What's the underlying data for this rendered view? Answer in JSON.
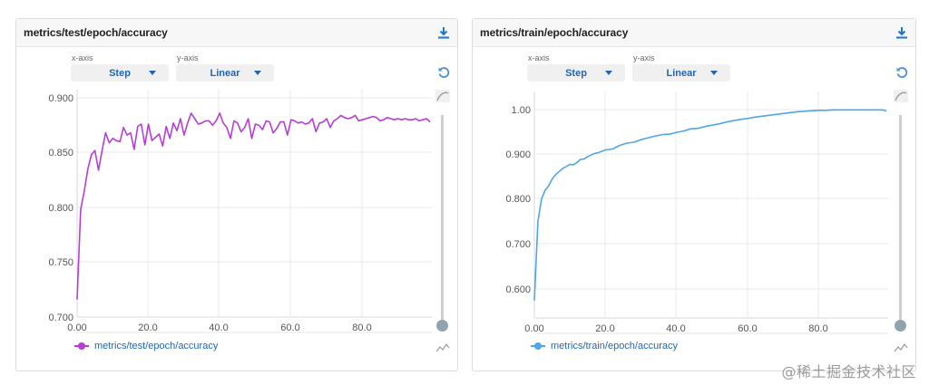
{
  "panels": [
    {
      "title": "metrics/test/epoch/accuracy",
      "x_axis_label": "x-axis",
      "y_axis_label": "y-axis",
      "x_axis_value": "Step",
      "y_axis_value": "Linear",
      "legend": "metrics/test/epoch/accuracy",
      "color": "#b73dd6"
    },
    {
      "title": "metrics/train/epoch/accuracy",
      "x_axis_label": "x-axis",
      "y_axis_label": "y-axis",
      "x_axis_value": "Step",
      "y_axis_value": "Linear",
      "legend": "metrics/train/epoch/accuracy",
      "color": "#4ea6e8"
    }
  ],
  "watermark": "@稀土掘金技术社区",
  "chart_data": [
    {
      "type": "line",
      "title": "metrics/test/epoch/accuracy",
      "xlabel": "Step",
      "ylabel": "",
      "xlim": [
        0,
        99
      ],
      "ylim": [
        0.7,
        0.9
      ],
      "x_ticks": [
        "0.00",
        "20.0",
        "40.0",
        "60.0",
        "80.0"
      ],
      "y_ticks": [
        "0.700",
        "0.750",
        "0.800",
        "0.850",
        "0.900"
      ],
      "grid": true,
      "legend_position": "bottom",
      "series": [
        {
          "name": "metrics/test/epoch/accuracy",
          "color": "#b73dd6",
          "x": [
            0,
            1,
            2,
            3,
            4,
            5,
            6,
            7,
            8,
            9,
            10,
            11,
            12,
            13,
            14,
            15,
            16,
            17,
            18,
            19,
            20,
            21,
            22,
            23,
            24,
            25,
            26,
            27,
            28,
            29,
            30,
            31,
            32,
            33,
            34,
            35,
            36,
            37,
            38,
            39,
            40,
            41,
            42,
            43,
            44,
            45,
            46,
            47,
            48,
            49,
            50,
            51,
            52,
            53,
            54,
            55,
            56,
            57,
            58,
            59,
            60,
            61,
            62,
            63,
            64,
            65,
            66,
            67,
            68,
            69,
            70,
            71,
            72,
            73,
            74,
            75,
            76,
            77,
            78,
            79,
            80,
            81,
            82,
            83,
            84,
            85,
            86,
            87,
            88,
            89,
            90,
            91,
            92,
            93,
            94,
            95,
            96,
            97,
            98,
            99
          ],
          "values": [
            0.716,
            0.798,
            0.815,
            0.835,
            0.848,
            0.852,
            0.834,
            0.852,
            0.868,
            0.859,
            0.863,
            0.861,
            0.86,
            0.873,
            0.866,
            0.868,
            0.853,
            0.874,
            0.876,
            0.857,
            0.876,
            0.861,
            0.864,
            0.867,
            0.856,
            0.874,
            0.863,
            0.877,
            0.87,
            0.881,
            0.866,
            0.877,
            0.886,
            0.881,
            0.876,
            0.877,
            0.879,
            0.879,
            0.875,
            0.879,
            0.886,
            0.877,
            0.873,
            0.863,
            0.879,
            0.877,
            0.869,
            0.873,
            0.881,
            0.863,
            0.876,
            0.875,
            0.871,
            0.879,
            0.878,
            0.868,
            0.872,
            0.878,
            0.878,
            0.866,
            0.88,
            0.879,
            0.877,
            0.878,
            0.876,
            0.877,
            0.881,
            0.869,
            0.877,
            0.878,
            0.881,
            0.873,
            0.879,
            0.881,
            0.884,
            0.882,
            0.881,
            0.882,
            0.884,
            0.879,
            0.88,
            0.881,
            0.882,
            0.883,
            0.882,
            0.879,
            0.88,
            0.882,
            0.881,
            0.88,
            0.881,
            0.88,
            0.881,
            0.88,
            0.88,
            0.881,
            0.879,
            0.88,
            0.881,
            0.878
          ]
        }
      ]
    },
    {
      "type": "line",
      "title": "metrics/train/epoch/accuracy",
      "xlabel": "Step",
      "ylabel": "",
      "xlim": [
        0,
        99
      ],
      "ylim": [
        0.54,
        1.04
      ],
      "x_ticks": [
        "0.00",
        "20.0",
        "40.0",
        "60.0",
        "80.0"
      ],
      "y_ticks": [
        "0.600",
        "0.700",
        "0.800",
        "0.900",
        "1.00"
      ],
      "grid": true,
      "legend_position": "bottom",
      "series": [
        {
          "name": "metrics/train/epoch/accuracy",
          "color": "#4ea6e8",
          "x": [
            0,
            1,
            2,
            3,
            4,
            5,
            6,
            7,
            8,
            9,
            10,
            11,
            12,
            13,
            14,
            15,
            16,
            17,
            18,
            19,
            20,
            22,
            24,
            26,
            28,
            30,
            32,
            34,
            36,
            38,
            40,
            42,
            44,
            46,
            48,
            50,
            52,
            54,
            56,
            58,
            60,
            62,
            64,
            66,
            68,
            70,
            72,
            74,
            76,
            78,
            80,
            82,
            84,
            86,
            88,
            90,
            92,
            94,
            96,
            98,
            99
          ],
          "values": [
            0.575,
            0.75,
            0.8,
            0.82,
            0.83,
            0.845,
            0.855,
            0.862,
            0.869,
            0.873,
            0.878,
            0.877,
            0.882,
            0.889,
            0.89,
            0.895,
            0.899,
            0.902,
            0.904,
            0.907,
            0.91,
            0.912,
            0.92,
            0.925,
            0.927,
            0.933,
            0.937,
            0.941,
            0.944,
            0.945,
            0.949,
            0.952,
            0.957,
            0.958,
            0.962,
            0.965,
            0.968,
            0.972,
            0.975,
            0.978,
            0.98,
            0.983,
            0.985,
            0.987,
            0.989,
            0.991,
            0.993,
            0.995,
            0.996,
            0.997,
            0.998,
            0.998,
            0.999,
            0.999,
            0.999,
            0.999,
            0.999,
            0.999,
            0.999,
            0.999,
            0.996
          ]
        }
      ]
    }
  ]
}
